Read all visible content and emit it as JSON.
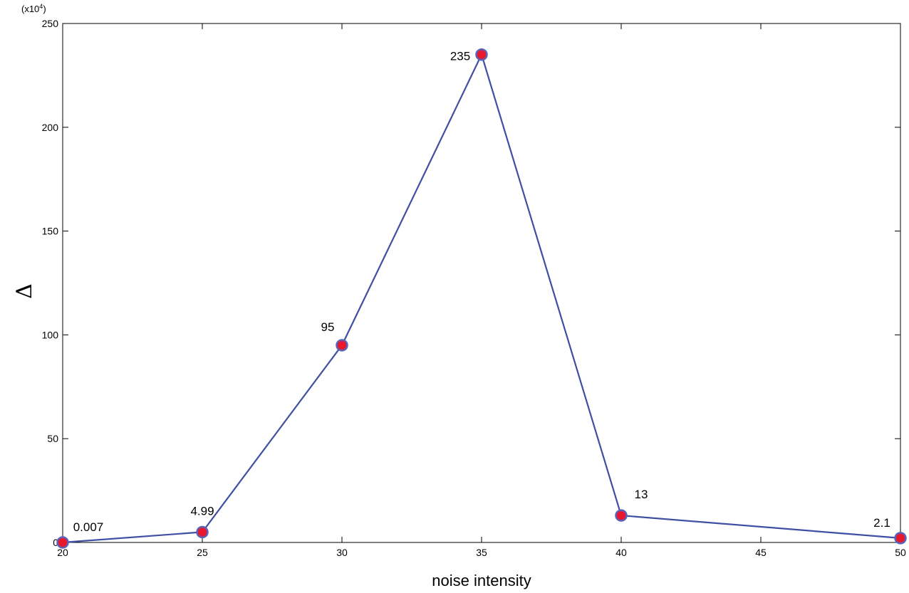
{
  "chart_data": {
    "type": "line",
    "title": "",
    "xlabel": "noise intensity",
    "ylabel": "Δ",
    "y_multiplier_base": "(x10",
    "y_multiplier_exp": "4",
    "y_multiplier_close": ")",
    "xlim": [
      20,
      50
    ],
    "ylim": [
      0,
      250
    ],
    "xticks": [
      20,
      25,
      30,
      35,
      40,
      45,
      50
    ],
    "yticks": [
      0,
      50,
      100,
      150,
      200,
      250
    ],
    "grid": false,
    "series": [
      {
        "x": [
          20,
          25,
          30,
          35,
          40,
          50
        ],
        "y": [
          0.007,
          4.99,
          95,
          235,
          13,
          2.1
        ],
        "labels": [
          "0.007",
          "4.99",
          "95",
          "235",
          "13",
          "2.1"
        ],
        "line_color": "#3f4fa3",
        "marker_color": "#e8182e",
        "marker_edge": "#5a63b6"
      }
    ]
  }
}
